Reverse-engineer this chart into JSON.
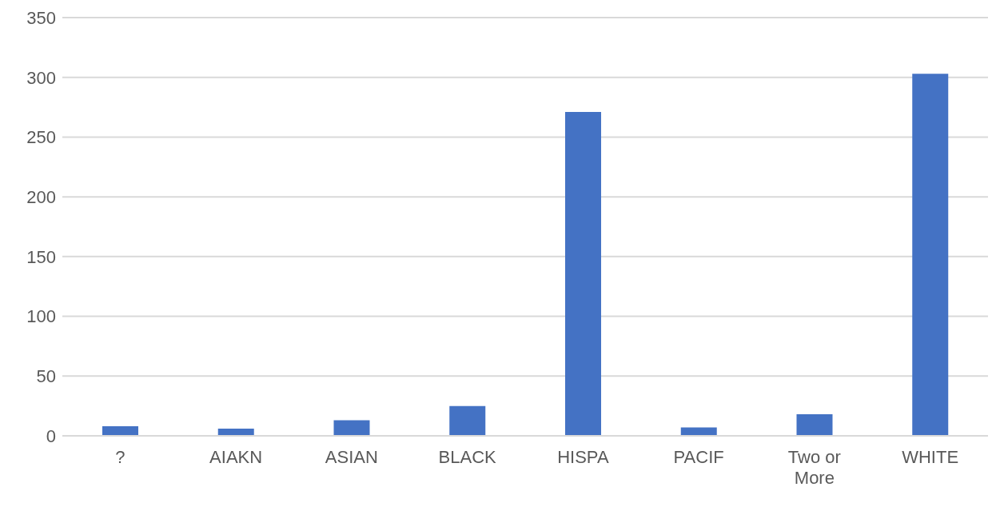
{
  "chart_data": {
    "type": "bar",
    "categories": [
      "?",
      "AIAKN",
      "ASIAN",
      "BLACK",
      "HISPA",
      "PACIF",
      "Two or More",
      "WHITE"
    ],
    "values": [
      8,
      6,
      13,
      25,
      271,
      7,
      18,
      303
    ],
    "color": "#4472c4",
    "ylim": [
      0,
      350
    ],
    "yticks": [
      0,
      50,
      100,
      150,
      200,
      250,
      300,
      350
    ],
    "grid": "y"
  }
}
